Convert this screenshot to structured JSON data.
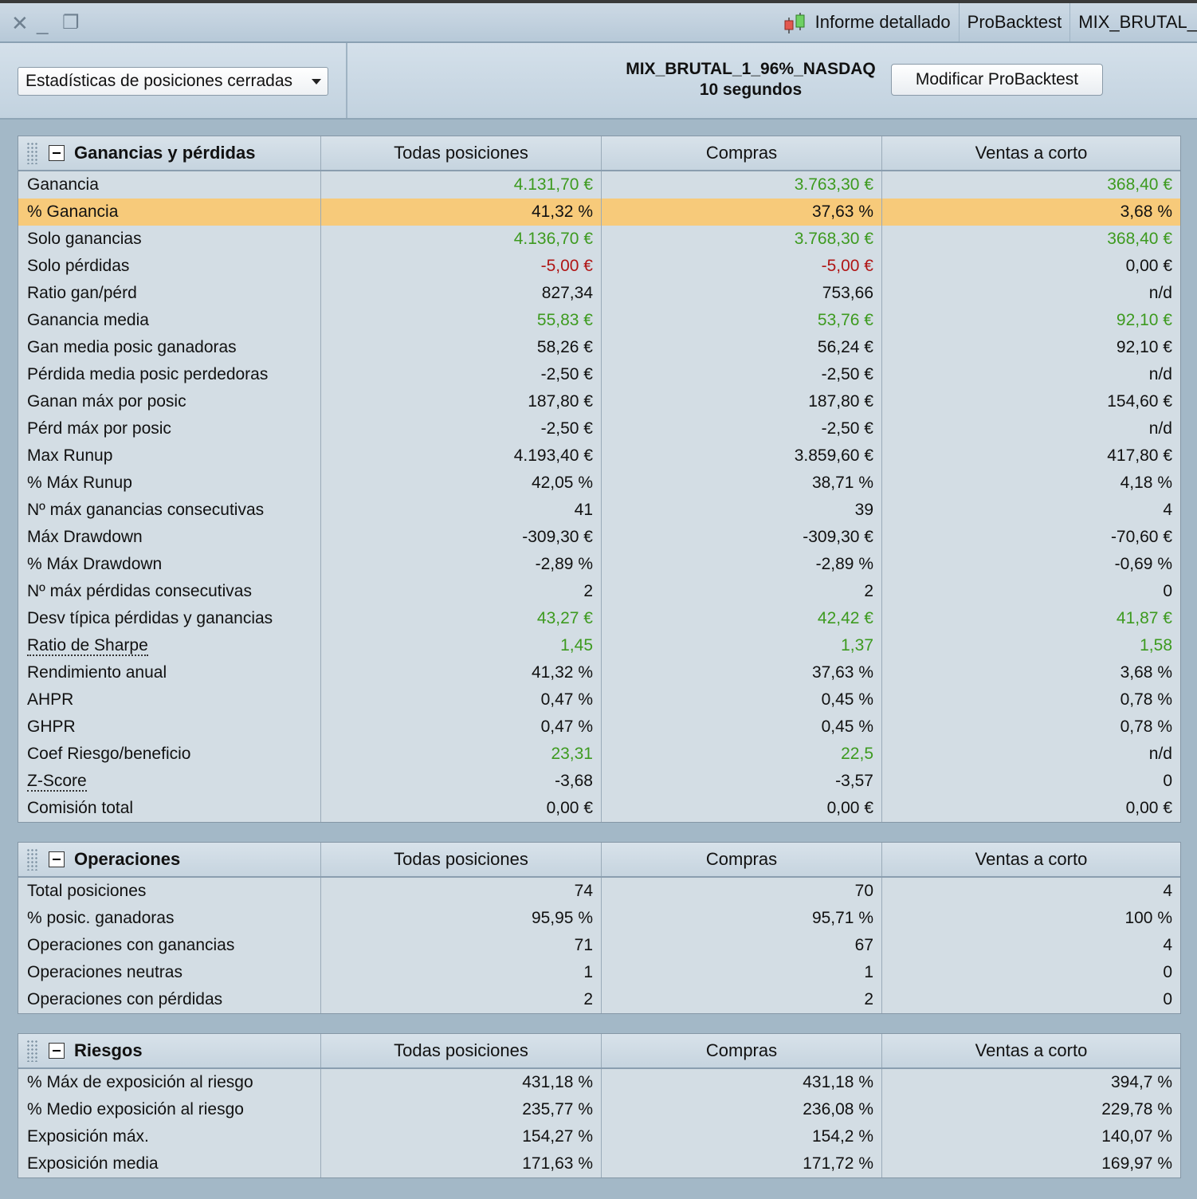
{
  "window": {
    "tabs": [
      "Informe detallado",
      "ProBacktest",
      "MIX_BRUTAL_"
    ]
  },
  "header": {
    "selector_value": "Estadísticas de posiciones cerradas",
    "strategy_name": "MIX_BRUTAL_1_96%_NASDAQ",
    "timeframe": "10 segundos",
    "modify_button": "Modificar ProBacktest"
  },
  "columns": [
    "Todas posiciones",
    "Compras",
    "Ventas a corto"
  ],
  "colors": {
    "positive": "#3d9a1f",
    "negative": "#b01515",
    "highlight": "#f7ca7a"
  },
  "sections": [
    {
      "title": "Ganancias y pérdidas",
      "rows": [
        {
          "label": "Ganancia",
          "values": [
            "4.131,70 €",
            "3.763,30 €",
            "368,40 €"
          ],
          "colors": [
            "green",
            "green",
            "green"
          ]
        },
        {
          "label": "% Ganancia",
          "values": [
            "41,32 %",
            "37,63 %",
            "3,68 %"
          ],
          "colors": [
            "",
            "",
            ""
          ],
          "highlight": true
        },
        {
          "label": "Solo ganancias",
          "values": [
            "4.136,70 €",
            "3.768,30 €",
            "368,40 €"
          ],
          "colors": [
            "green",
            "green",
            "green"
          ]
        },
        {
          "label": "Solo pérdidas",
          "values": [
            "-5,00 €",
            "-5,00 €",
            "0,00 €"
          ],
          "colors": [
            "red",
            "red",
            ""
          ]
        },
        {
          "label": "Ratio gan/pérd",
          "values": [
            "827,34",
            "753,66",
            "n/d"
          ],
          "colors": [
            "",
            "",
            ""
          ]
        },
        {
          "label": "Ganancia media",
          "values": [
            "55,83 €",
            "53,76 €",
            "92,10 €"
          ],
          "colors": [
            "green",
            "green",
            "green"
          ]
        },
        {
          "label": "Gan media posic ganadoras",
          "values": [
            "58,26 €",
            "56,24 €",
            "92,10 €"
          ],
          "colors": [
            "",
            "",
            ""
          ]
        },
        {
          "label": "Pérdida media posic perdedoras",
          "values": [
            "-2,50 €",
            "-2,50 €",
            "n/d"
          ],
          "colors": [
            "",
            "",
            ""
          ]
        },
        {
          "label": "Ganan máx por posic",
          "values": [
            "187,80 €",
            "187,80 €",
            "154,60 €"
          ],
          "colors": [
            "",
            "",
            ""
          ]
        },
        {
          "label": "Pérd máx por posic",
          "values": [
            "-2,50 €",
            "-2,50 €",
            "n/d"
          ],
          "colors": [
            "",
            "",
            ""
          ]
        },
        {
          "label": "Max Runup",
          "values": [
            "4.193,40 €",
            "3.859,60 €",
            "417,80 €"
          ],
          "colors": [
            "",
            "",
            ""
          ]
        },
        {
          "label": "% Máx Runup",
          "values": [
            "42,05 %",
            "38,71 %",
            "4,18 %"
          ],
          "colors": [
            "",
            "",
            ""
          ]
        },
        {
          "label": "Nº máx ganancias consecutivas",
          "values": [
            "41",
            "39",
            "4"
          ],
          "colors": [
            "",
            "",
            ""
          ]
        },
        {
          "label": "Máx Drawdown",
          "values": [
            "-309,30 €",
            "-309,30 €",
            "-70,60 €"
          ],
          "colors": [
            "",
            "",
            ""
          ]
        },
        {
          "label": "% Máx Drawdown",
          "values": [
            "-2,89 %",
            "-2,89 %",
            "-0,69 %"
          ],
          "colors": [
            "",
            "",
            ""
          ]
        },
        {
          "label": "Nº máx pérdidas consecutivas",
          "values": [
            "2",
            "2",
            "0"
          ],
          "colors": [
            "",
            "",
            ""
          ]
        },
        {
          "label": "Desv típica pérdidas y ganancias",
          "values": [
            "43,27 €",
            "42,42 €",
            "41,87 €"
          ],
          "colors": [
            "green",
            "green",
            "green"
          ]
        },
        {
          "label": "Ratio de Sharpe",
          "values": [
            "1,45",
            "1,37",
            "1,58"
          ],
          "colors": [
            "green",
            "green",
            "green"
          ],
          "dotted": true
        },
        {
          "label": "Rendimiento anual",
          "values": [
            "41,32 %",
            "37,63 %",
            "3,68 %"
          ],
          "colors": [
            "",
            "",
            ""
          ]
        },
        {
          "label": "AHPR",
          "values": [
            "0,47 %",
            "0,45 %",
            "0,78 %"
          ],
          "colors": [
            "",
            "",
            ""
          ]
        },
        {
          "label": "GHPR",
          "values": [
            "0,47 %",
            "0,45 %",
            "0,78 %"
          ],
          "colors": [
            "",
            "",
            ""
          ]
        },
        {
          "label": "Coef Riesgo/beneficio",
          "values": [
            "23,31",
            "22,5",
            "n/d"
          ],
          "colors": [
            "green",
            "green",
            ""
          ]
        },
        {
          "label": "Z-Score",
          "values": [
            "-3,68",
            "-3,57",
            "0"
          ],
          "colors": [
            "",
            "",
            ""
          ],
          "dotted": true
        },
        {
          "label": "Comisión total",
          "values": [
            "0,00 €",
            "0,00 €",
            "0,00 €"
          ],
          "colors": [
            "",
            "",
            ""
          ]
        }
      ]
    },
    {
      "title": "Operaciones",
      "rows": [
        {
          "label": "Total posiciones",
          "values": [
            "74",
            "70",
            "4"
          ],
          "colors": [
            "",
            "",
            ""
          ]
        },
        {
          "label": "% posic. ganadoras",
          "values": [
            "95,95 %",
            "95,71 %",
            "100 %"
          ],
          "colors": [
            "",
            "",
            ""
          ]
        },
        {
          "label": "Operaciones con ganancias",
          "values": [
            "71",
            "67",
            "4"
          ],
          "colors": [
            "",
            "",
            ""
          ]
        },
        {
          "label": "Operaciones neutras",
          "values": [
            "1",
            "1",
            "0"
          ],
          "colors": [
            "",
            "",
            ""
          ]
        },
        {
          "label": "Operaciones con pérdidas",
          "values": [
            "2",
            "2",
            "0"
          ],
          "colors": [
            "",
            "",
            ""
          ]
        }
      ]
    },
    {
      "title": "Riesgos",
      "rows": [
        {
          "label": "% Máx de exposición al riesgo",
          "values": [
            "431,18 %",
            "431,18 %",
            "394,7 %"
          ],
          "colors": [
            "",
            "",
            ""
          ]
        },
        {
          "label": "% Medio exposición al riesgo",
          "values": [
            "235,77 %",
            "236,08 %",
            "229,78 %"
          ],
          "colors": [
            "",
            "",
            ""
          ]
        },
        {
          "label": "Exposición máx.",
          "values": [
            "154,27 %",
            "154,2 %",
            "140,07 %"
          ],
          "colors": [
            "",
            "",
            ""
          ]
        },
        {
          "label": "Exposición media",
          "values": [
            "171,63 %",
            "171,72 %",
            "169,97 %"
          ],
          "colors": [
            "",
            "",
            ""
          ]
        }
      ]
    }
  ]
}
